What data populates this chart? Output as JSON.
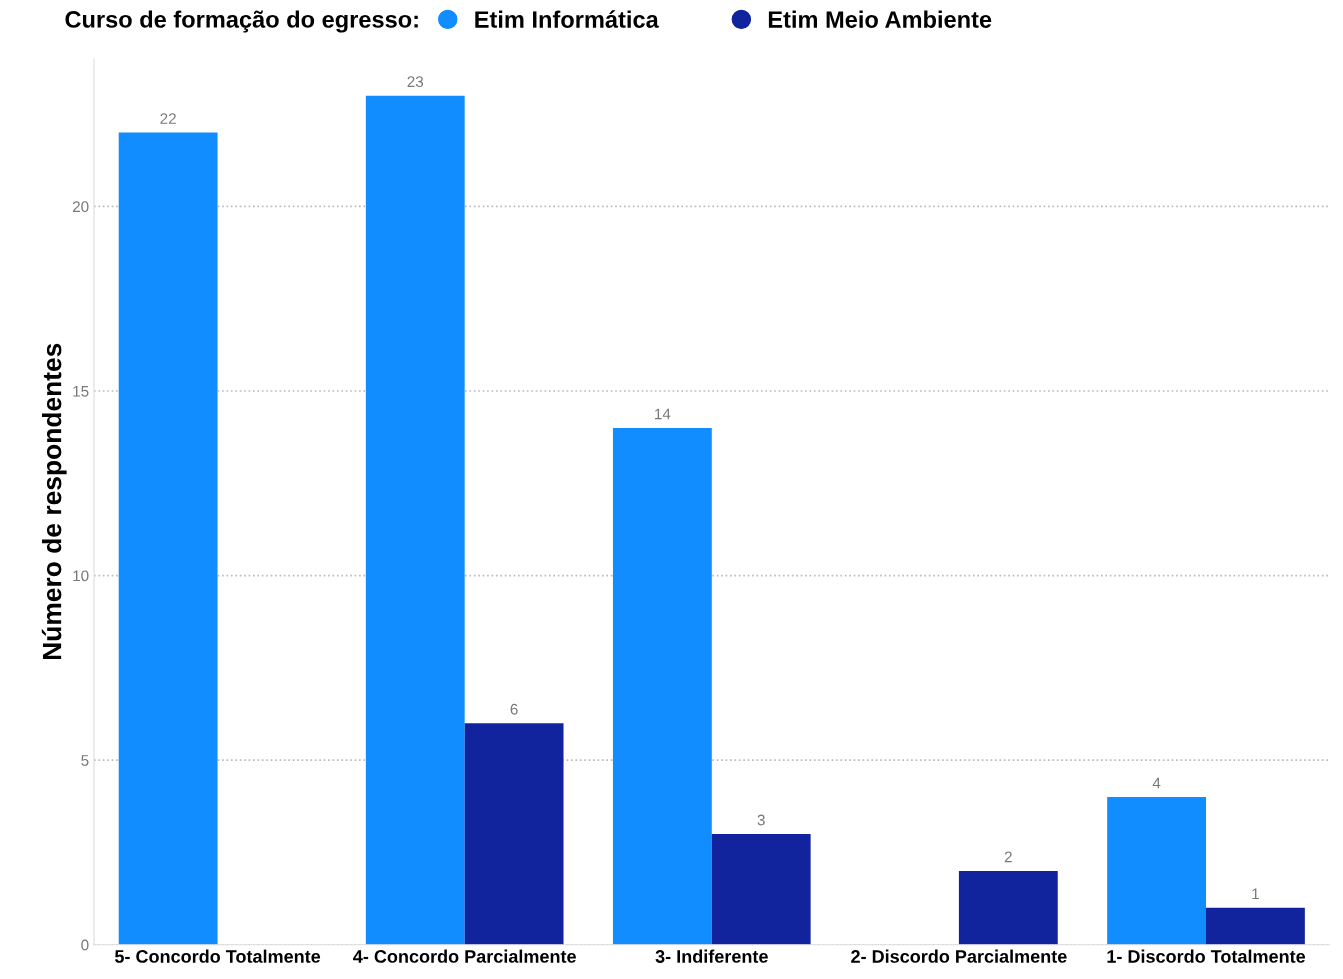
{
  "chart_data": {
    "type": "bar",
    "categories": [
      "5- Concordo Totalmente",
      "4- Concordo Parcialmente",
      "3- Indiferente",
      "2- Discordo Parcialmente",
      "1- Discordo Totalmente"
    ],
    "series": [
      {
        "name": "Etim Informática",
        "color": "#118dff",
        "values": [
          22,
          23,
          14,
          null,
          4
        ]
      },
      {
        "name": "Etim Meio Ambiente",
        "color": "#12239e",
        "values": [
          null,
          6,
          3,
          2,
          1
        ]
      }
    ],
    "ylabel": "Número de respondentes",
    "legend_title": "Curso de formação do egresso:",
    "legend": "top left",
    "ylim": [
      0,
      24
    ],
    "yticks": [
      0,
      5,
      10,
      15,
      20
    ],
    "grid": "y",
    "data_labels": true
  }
}
